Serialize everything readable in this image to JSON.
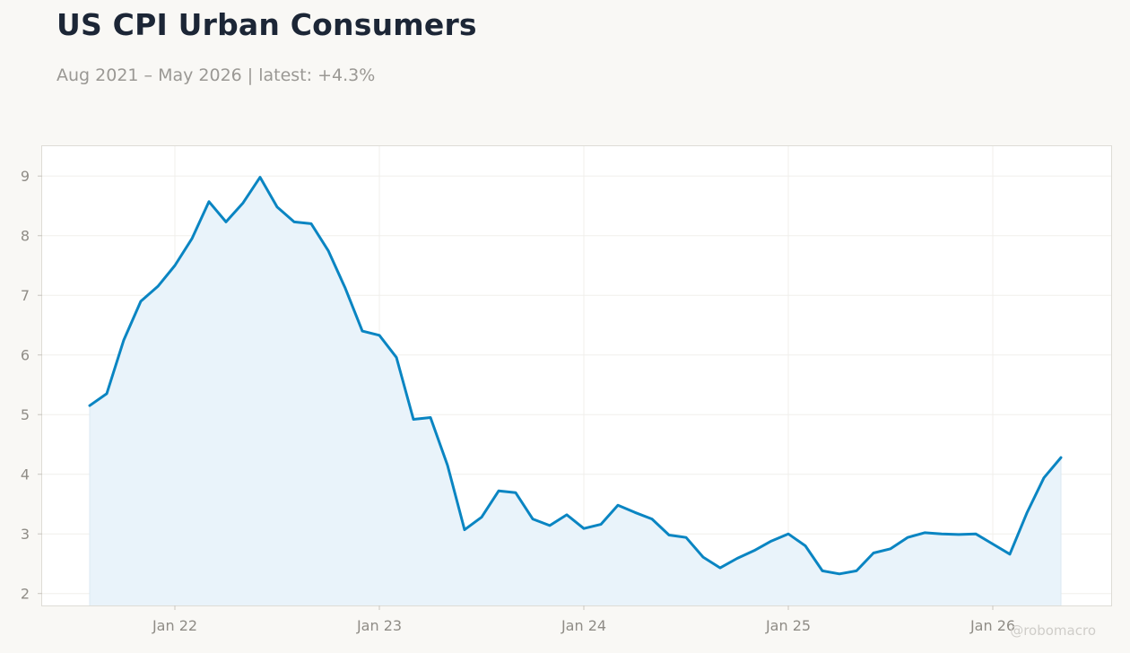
{
  "header": {
    "title": "US CPI Urban Consumers",
    "subtitle": "Aug 2021 – May 2026 | latest: +4.3%"
  },
  "watermark": "@robomacro",
  "chart_data": {
    "type": "area",
    "title": "US CPI Urban Consumers",
    "subtitle": "Aug 2021 – May 2026 | latest: +4.3%",
    "xlabel": "",
    "ylabel": "",
    "ylim": [
      1.8,
      9.5
    ],
    "yticks": [
      2,
      3,
      4,
      5,
      6,
      7,
      8,
      9
    ],
    "xticks": [
      {
        "label": "Jan 22",
        "date": "2022-01"
      },
      {
        "label": "Jan 23",
        "date": "2023-01"
      },
      {
        "label": "Jan 24",
        "date": "2024-01"
      },
      {
        "label": "Jan 25",
        "date": "2025-01"
      },
      {
        "label": "Jan 26",
        "date": "2026-01"
      }
    ],
    "grid": true,
    "series": [
      {
        "name": "",
        "color": "#0a85c2",
        "fill": "#e9f3fa",
        "dates": [
          "2021-08",
          "2021-09",
          "2021-10",
          "2021-11",
          "2021-12",
          "2022-01",
          "2022-02",
          "2022-03",
          "2022-04",
          "2022-05",
          "2022-06",
          "2022-07",
          "2022-08",
          "2022-09",
          "2022-10",
          "2022-11",
          "2022-12",
          "2023-01",
          "2023-02",
          "2023-03",
          "2023-04",
          "2023-05",
          "2023-06",
          "2023-07",
          "2023-08",
          "2023-09",
          "2023-10",
          "2023-11",
          "2023-12",
          "2024-01",
          "2024-02",
          "2024-03",
          "2024-04",
          "2024-05",
          "2024-06",
          "2024-07",
          "2024-08",
          "2024-09",
          "2024-10",
          "2024-11",
          "2024-12",
          "2025-01",
          "2025-02",
          "2025-03",
          "2025-04",
          "2025-05",
          "2025-06",
          "2025-07",
          "2025-08",
          "2025-09",
          "2025-10",
          "2025-11",
          "2025-12",
          "2026-01",
          "2026-02",
          "2026-03",
          "2026-04",
          "2026-05"
        ],
        "values": [
          5.15,
          5.35,
          6.25,
          6.9,
          7.15,
          7.5,
          7.95,
          8.57,
          8.23,
          8.55,
          8.98,
          8.48,
          8.23,
          8.2,
          7.75,
          7.12,
          6.4,
          6.33,
          5.96,
          4.92,
          4.95,
          4.15,
          3.07,
          3.28,
          3.72,
          3.69,
          3.25,
          3.14,
          3.32,
          3.09,
          3.16,
          3.48,
          3.36,
          3.25,
          2.98,
          2.94,
          2.61,
          2.43,
          2.59,
          2.72,
          2.88,
          3.0,
          2.8,
          2.38,
          2.33,
          2.38,
          2.68,
          2.75,
          2.94,
          3.02,
          3.0,
          2.99,
          3.0,
          2.83,
          2.66,
          3.35,
          3.94,
          4.28
        ]
      }
    ]
  }
}
